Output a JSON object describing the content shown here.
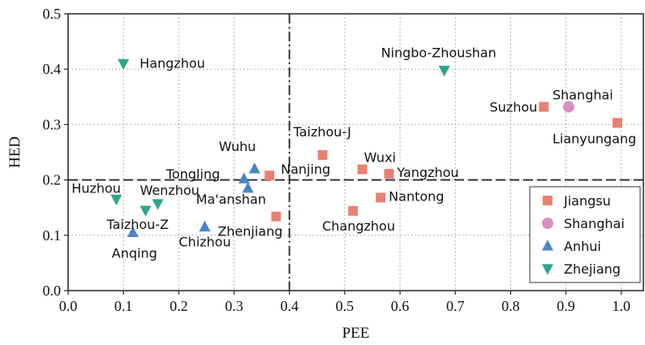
{
  "chart_data": {
    "type": "scatter",
    "xlabel": "PEE",
    "ylabel": "HED",
    "xlim": [
      0.0,
      1.04
    ],
    "ylim": [
      0.0,
      0.5
    ],
    "xticks": [
      "0.0",
      "0.1",
      "0.2",
      "0.3",
      "0.4",
      "0.5",
      "0.6",
      "0.7",
      "0.8",
      "0.9",
      "1.0"
    ],
    "yticks": [
      "0.0",
      "0.1",
      "0.2",
      "0.3",
      "0.4",
      "0.5"
    ],
    "grid": "dotted",
    "reference_lines": {
      "x": 0.4,
      "y": 0.2
    },
    "legend_position": "bottom-right",
    "series": [
      {
        "name": "Jiangsu",
        "marker": "square",
        "color": "#e8816f",
        "points": [
          {
            "label": "Suzhou",
            "x": 0.86,
            "y": 0.332
          },
          {
            "label": "Lianyungang",
            "x": 0.993,
            "y": 0.303
          },
          {
            "label": "Taizhou-J",
            "x": 0.46,
            "y": 0.245
          },
          {
            "label": "Wuxi",
            "x": 0.532,
            "y": 0.219
          },
          {
            "label": "Yangzhou",
            "x": 0.58,
            "y": 0.211
          },
          {
            "label": "Nanjing",
            "x": 0.364,
            "y": 0.208
          },
          {
            "label": "Nantong",
            "x": 0.565,
            "y": 0.168
          },
          {
            "label": "Changzhou",
            "x": 0.515,
            "y": 0.144
          },
          {
            "label": "Zhenjiang",
            "x": 0.376,
            "y": 0.134
          }
        ]
      },
      {
        "name": "Shanghai",
        "marker": "circle",
        "color": "#d98ec4",
        "points": [
          {
            "label": "Shanghai",
            "x": 0.905,
            "y": 0.332
          }
        ]
      },
      {
        "name": "Anhui",
        "marker": "triangle-up",
        "color": "#4a84c8",
        "points": [
          {
            "label": "Wuhu",
            "x": 0.337,
            "y": 0.22
          },
          {
            "label": "Tongling",
            "x": 0.318,
            "y": 0.202
          },
          {
            "label": "Ma'anshan",
            "x": 0.325,
            "y": 0.185
          },
          {
            "label": "Chizhou",
            "x": 0.247,
            "y": 0.115
          },
          {
            "label": "Anqing",
            "x": 0.117,
            "y": 0.105
          }
        ]
      },
      {
        "name": "Zhejiang",
        "marker": "triangle-down",
        "color": "#2ea58a",
        "points": [
          {
            "label": "Hangzhou",
            "x": 0.1,
            "y": 0.41
          },
          {
            "label": "Ningbo-Zhoushan",
            "x": 0.68,
            "y": 0.398
          },
          {
            "label": "Huzhou",
            "x": 0.087,
            "y": 0.165
          },
          {
            "label": "Wenzhou",
            "x": 0.162,
            "y": 0.157
          },
          {
            "label": "Taizhou-Z",
            "x": 0.14,
            "y": 0.145
          }
        ]
      }
    ]
  }
}
